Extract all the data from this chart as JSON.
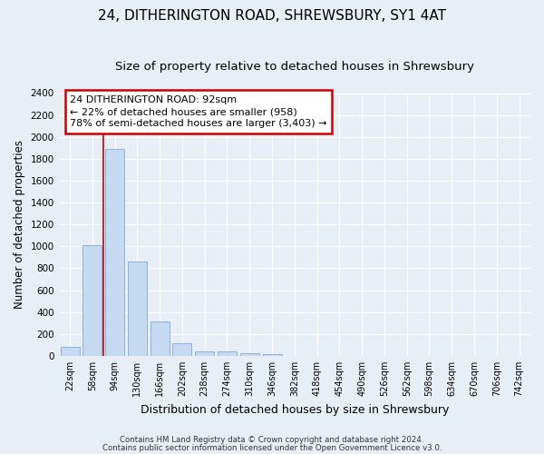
{
  "title": "24, DITHERINGTON ROAD, SHREWSBURY, SY1 4AT",
  "subtitle": "Size of property relative to detached houses in Shrewsbury",
  "xlabel": "Distribution of detached houses by size in Shrewsbury",
  "ylabel": "Number of detached properties",
  "bin_labels": [
    "22sqm",
    "58sqm",
    "94sqm",
    "130sqm",
    "166sqm",
    "202sqm",
    "238sqm",
    "274sqm",
    "310sqm",
    "346sqm",
    "382sqm",
    "418sqm",
    "454sqm",
    "490sqm",
    "526sqm",
    "562sqm",
    "598sqm",
    "634sqm",
    "670sqm",
    "706sqm",
    "742sqm"
  ],
  "bar_heights": [
    85,
    1010,
    1890,
    860,
    315,
    115,
    45,
    38,
    28,
    15,
    0,
    0,
    0,
    0,
    0,
    0,
    0,
    0,
    0,
    0,
    0
  ],
  "bar_color": "#c5d9f0",
  "bar_edge_color": "#7aabdc",
  "annotation_text": "24 DITHERINGTON ROAD: 92sqm\n← 22% of detached houses are smaller (958)\n78% of semi-detached houses are larger (3,403) →",
  "annotation_box_facecolor": "#ffffff",
  "annotation_border_color": "#cc0000",
  "footer_line1": "Contains HM Land Registry data © Crown copyright and database right 2024.",
  "footer_line2": "Contains public sector information licensed under the Open Government Licence v3.0.",
  "ylim": [
    0,
    2400
  ],
  "yticks": [
    0,
    200,
    400,
    600,
    800,
    1000,
    1200,
    1400,
    1600,
    1800,
    2000,
    2200,
    2400
  ],
  "red_line_bin_index": 2,
  "background_color": "#e8eef5",
  "plot_bg_color": "#e8eef5",
  "grid_color": "#ffffff",
  "title_fontsize": 11,
  "subtitle_fontsize": 9.5,
  "ylabel_fontsize": 8.5,
  "xlabel_fontsize": 9
}
